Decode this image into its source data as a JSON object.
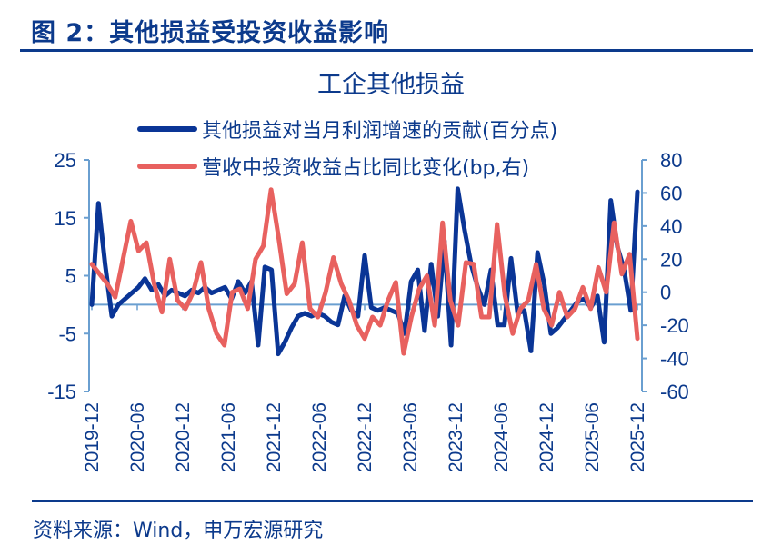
{
  "figure": {
    "title": "图 2：其他损益受投资收益影响",
    "source": "资料来源：Wind，申万宏源研究"
  },
  "colors": {
    "navy": "#0c3a8c",
    "series_blue": "#0a3596",
    "series_red": "#e8615f",
    "axis": "#6a9fd0"
  },
  "chart_data": {
    "type": "line",
    "title": "工企其他损益",
    "xlabel": "",
    "ylabel": "",
    "ylabel_right": "",
    "legend_position": "top",
    "grid": false,
    "x_tick_labels": [
      "2019-12",
      "2020-06",
      "2020-12",
      "2021-06",
      "2021-12",
      "2022-06",
      "2022-12",
      "2023-06",
      "2023-12",
      "2024-06",
      "2024-12",
      "2025-06",
      "2025-12"
    ],
    "y_left": {
      "ticks": [
        25,
        15,
        5,
        -5,
        -15
      ],
      "ylim": [
        -15,
        25
      ]
    },
    "y_right": {
      "ticks": [
        80,
        60,
        40,
        20,
        0,
        -20,
        -40,
        -60
      ],
      "ylim": [
        -60,
        80
      ]
    },
    "series": [
      {
        "name": "其他损益对当月利润增速的贡献(百分点)",
        "axis": "left",
        "color": "#0a3596",
        "values": [
          0,
          17.5,
          7,
          -2,
          0,
          1,
          2,
          3,
          4.5,
          2.5,
          3.5,
          1.5,
          2.5,
          2,
          1.5,
          2.5,
          2,
          3,
          2,
          2.5,
          3,
          1,
          4,
          2,
          4,
          -7,
          6.5,
          6,
          -8.5,
          -6.5,
          -4,
          -2,
          -1.5,
          -2,
          -1.5,
          -2,
          -3,
          -3.5,
          1.5,
          -1,
          -2,
          8.5,
          -0.5,
          -1,
          -0.5,
          -1,
          -1.5,
          -5,
          4,
          6,
          -4.5,
          7,
          -2,
          11,
          -7,
          20,
          13,
          7,
          3,
          0,
          6,
          -3.5,
          -3.5,
          8,
          -1.5,
          -1,
          -8,
          9,
          3.5,
          -5,
          -4,
          -2.5,
          -1,
          0.5,
          1,
          -0.5,
          1.5,
          -6.5,
          18,
          10,
          6,
          -1,
          19.5
        ],
        "points_y_note": "approximate, read from pixels"
      },
      {
        "name": "营收中投资收益占比同比变化(bp,右)",
        "axis": "right",
        "color": "#e8615f",
        "values": [
          17,
          11,
          5,
          -3,
          20,
          43,
          25,
          30,
          5,
          -12,
          20,
          -5,
          -10,
          0,
          18,
          -10,
          -25,
          -32,
          0,
          2,
          -10,
          20,
          28,
          62,
          32,
          -1,
          5,
          30,
          -10,
          -15,
          0,
          21,
          5,
          -5,
          -20,
          -28,
          -15,
          -20,
          -5,
          6,
          -37,
          -15,
          2,
          10,
          -20,
          42,
          -5,
          -20,
          18,
          17,
          -15,
          -15,
          41,
          -2,
          -25,
          -10,
          -5,
          17,
          -10,
          -20,
          0,
          -15,
          -10,
          3,
          -10,
          15,
          0,
          42,
          11,
          23,
          -28
        ],
        "points_y_note": "approximate, read from pixels"
      }
    ]
  }
}
